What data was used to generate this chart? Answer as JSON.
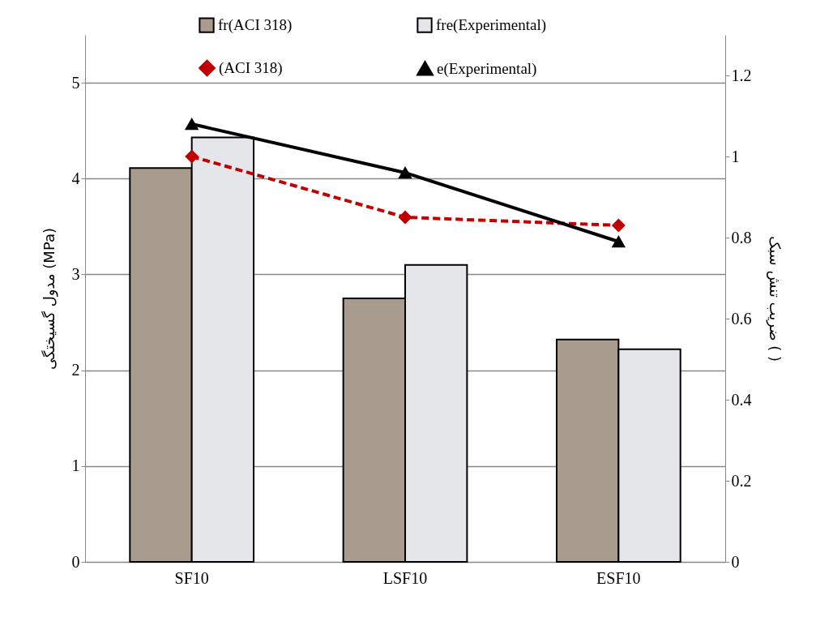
{
  "chart_data": {
    "type": "bar",
    "categories": [
      "SF10",
      "LSF10",
      "ESF10"
    ],
    "ylabel": "مدول گسیختگی (MPa)",
    "y2label": "ضریب تنش سبک ( )",
    "ylim": [
      0,
      5.5
    ],
    "yticks": [
      0,
      1,
      2,
      3,
      4,
      5
    ],
    "y2lim": [
      0,
      1.3
    ],
    "y2ticks": [
      0,
      0.2,
      0.4,
      0.6,
      0.8,
      1,
      1.2
    ],
    "grid": "y",
    "legend": "top",
    "series": [
      {
        "name": "fr(ACI 318)",
        "color": "#a99b8d",
        "values": [
          4.11,
          2.75,
          2.32
        ]
      },
      {
        "name": "fre(Experimental)",
        "color": "#e4e6ea",
        "values": [
          4.43,
          3.1,
          2.22
        ]
      },
      {
        "name": "(ACI 318)",
        "type": "line",
        "axis": "y2",
        "color": "#c00000",
        "marker": "diamond",
        "line_style": "dashed",
        "values": [
          1.0,
          0.85,
          0.83
        ]
      },
      {
        "name": "e(Experimental)",
        "type": "line",
        "axis": "y2",
        "color": "#000000",
        "marker": "triangle",
        "line_style": "solid",
        "values": [
          1.08,
          0.96,
          0.79
        ]
      }
    ]
  }
}
